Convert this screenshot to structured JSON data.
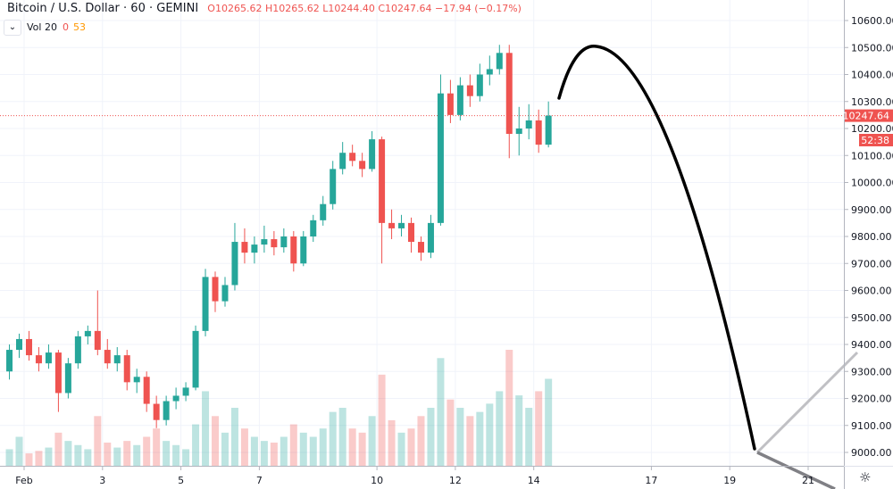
{
  "legend": {
    "symbol": "Bitcoin / U.S. Dollar",
    "interval": "60",
    "exchange": "GEMINI",
    "open": "O10265.62",
    "high": "H10265.62",
    "low": "L10244.40",
    "close": "C10247.64",
    "change": "−17.94 (−0.17%)"
  },
  "volume_legend": {
    "label": "Vol 20",
    "value1": "0",
    "value2": "53",
    "toggle_icon": "chevron-down-icon"
  },
  "price_axis": {
    "ticks": [
      "10600.00",
      "10500.00",
      "10400.00",
      "10300.00",
      "10200.00",
      "10100.00",
      "10000.00",
      "9900.00",
      "9800.00",
      "9700.00",
      "9600.00",
      "9500.00",
      "9400.00",
      "9300.00",
      "9200.00",
      "9100.00",
      "9000.00"
    ],
    "last_price": "10247.64",
    "countdown": "52:38"
  },
  "settings_icon": "gear-icon",
  "colors": {
    "up": "#26a69a",
    "down": "#ef5350",
    "last_price": "#ef5350",
    "drawing": "#000000",
    "drawing_gray_light": "#c0c0c4",
    "drawing_gray_dark": "#808085"
  },
  "chart_data": {
    "type": "candlestick",
    "title": "Bitcoin / U.S. Dollar · 60 · GEMINI",
    "x_ticks": [
      {
        "label": "Feb",
        "day": 1
      },
      {
        "label": "3",
        "day": 3
      },
      {
        "label": "5",
        "day": 5
      },
      {
        "label": "7",
        "day": 7
      },
      {
        "label": "10",
        "day": 10
      },
      {
        "label": "12",
        "day": 12
      },
      {
        "label": "14",
        "day": 14
      },
      {
        "label": "17",
        "day": 17
      },
      {
        "label": "19",
        "day": 19
      },
      {
        "label": "21",
        "day": 21
      }
    ],
    "ylim": [
      8900,
      10680
    ],
    "start_day": 0.5,
    "candle_days": 0.25,
    "ohlc": [
      [
        9300,
        9400,
        9270,
        9380
      ],
      [
        9380,
        9440,
        9350,
        9420
      ],
      [
        9420,
        9450,
        9340,
        9360
      ],
      [
        9360,
        9390,
        9300,
        9330
      ],
      [
        9330,
        9400,
        9310,
        9370
      ],
      [
        9370,
        9380,
        9150,
        9220
      ],
      [
        9220,
        9350,
        9200,
        9330
      ],
      [
        9330,
        9450,
        9310,
        9430
      ],
      [
        9430,
        9470,
        9400,
        9450
      ],
      [
        9450,
        9600,
        9360,
        9380
      ],
      [
        9380,
        9420,
        9310,
        9330
      ],
      [
        9330,
        9390,
        9300,
        9360
      ],
      [
        9360,
        9380,
        9230,
        9260
      ],
      [
        9260,
        9310,
        9220,
        9280
      ],
      [
        9280,
        9300,
        9150,
        9180
      ],
      [
        9180,
        9210,
        9090,
        9120
      ],
      [
        9120,
        9210,
        9100,
        9190
      ],
      [
        9190,
        9240,
        9160,
        9210
      ],
      [
        9210,
        9260,
        9190,
        9240
      ],
      [
        9240,
        9470,
        9230,
        9450
      ],
      [
        9450,
        9680,
        9430,
        9650
      ],
      [
        9650,
        9670,
        9520,
        9560
      ],
      [
        9560,
        9650,
        9540,
        9620
      ],
      [
        9620,
        9850,
        9600,
        9780
      ],
      [
        9780,
        9830,
        9700,
        9740
      ],
      [
        9740,
        9800,
        9700,
        9770
      ],
      [
        9770,
        9840,
        9740,
        9790
      ],
      [
        9790,
        9820,
        9730,
        9760
      ],
      [
        9760,
        9830,
        9740,
        9800
      ],
      [
        9800,
        9820,
        9670,
        9700
      ],
      [
        9700,
        9820,
        9690,
        9800
      ],
      [
        9800,
        9880,
        9780,
        9860
      ],
      [
        9860,
        9950,
        9840,
        9920
      ],
      [
        9920,
        10080,
        9900,
        10050
      ],
      [
        10050,
        10150,
        10030,
        10110
      ],
      [
        10110,
        10140,
        10060,
        10080
      ],
      [
        10080,
        10110,
        10020,
        10050
      ],
      [
        10050,
        10190,
        10040,
        10160
      ],
      [
        10160,
        10170,
        9700,
        9850
      ],
      [
        9850,
        9900,
        9790,
        9830
      ],
      [
        9830,
        9880,
        9800,
        9850
      ],
      [
        9850,
        9870,
        9740,
        9780
      ],
      [
        9780,
        9800,
        9710,
        9740
      ],
      [
        9740,
        9880,
        9720,
        9850
      ],
      [
        9850,
        10400,
        9840,
        10330
      ],
      [
        10330,
        10380,
        10220,
        10250
      ],
      [
        10250,
        10390,
        10230,
        10360
      ],
      [
        10360,
        10400,
        10280,
        10320
      ],
      [
        10320,
        10440,
        10300,
        10400
      ],
      [
        10400,
        10470,
        10360,
        10420
      ],
      [
        10420,
        10510,
        10400,
        10480
      ],
      [
        10480,
        10510,
        10090,
        10180
      ],
      [
        10180,
        10280,
        10100,
        10200
      ],
      [
        10200,
        10290,
        10160,
        10230
      ],
      [
        10230,
        10270,
        10110,
        10140
      ],
      [
        10140,
        10300,
        10130,
        10247.64
      ]
    ],
    "volume": [
      20,
      35,
      15,
      18,
      22,
      40,
      30,
      25,
      20,
      60,
      28,
      22,
      30,
      25,
      35,
      45,
      30,
      25,
      20,
      50,
      90,
      60,
      40,
      70,
      45,
      35,
      30,
      28,
      35,
      50,
      40,
      35,
      45,
      65,
      70,
      45,
      40,
      60,
      110,
      55,
      40,
      45,
      60,
      70,
      130,
      80,
      70,
      60,
      65,
      75,
      90,
      140,
      85,
      70,
      90,
      105
    ]
  }
}
